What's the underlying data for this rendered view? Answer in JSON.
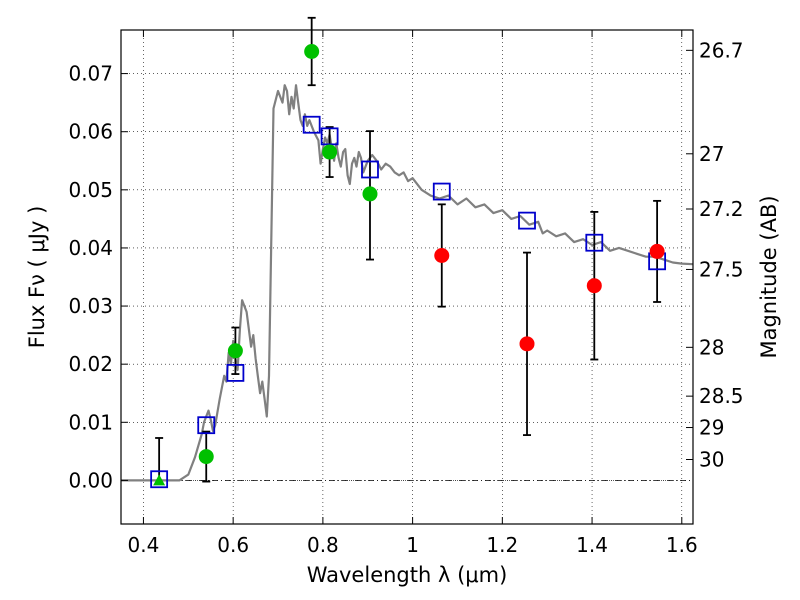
{
  "chart_data": {
    "type": "scatter",
    "title": "",
    "xlabel": "Wavelength  λ (μm)",
    "ylabel": "Flux  Fν  ( μJy )",
    "y2label": "Magnitude (AB)",
    "xlim": [
      0.35,
      1.625
    ],
    "ylim": [
      -0.0075,
      0.0775
    ],
    "grid": true,
    "x_ticks": [
      0.4,
      0.6,
      0.8,
      1.0,
      1.2,
      1.4,
      1.6
    ],
    "x_tick_labels": [
      "0.4",
      "0.6",
      "0.8",
      "1",
      "1.2",
      "1.4",
      "1.6"
    ],
    "y_ticks": [
      0.0,
      0.01,
      0.02,
      0.03,
      0.04,
      0.05,
      0.06,
      0.07
    ],
    "y_tick_labels": [
      "0.00",
      "0.01",
      "0.02",
      "0.03",
      "0.04",
      "0.05",
      "0.06",
      "0.07"
    ],
    "right_ticks": [
      {
        "label": "26.7",
        "flux": 0.074
      },
      {
        "label": "27",
        "flux": 0.0562
      },
      {
        "label": "27.2",
        "flux": 0.0467
      },
      {
        "label": "27.5",
        "flux": 0.0363
      },
      {
        "label": "28",
        "flux": 0.0229
      },
      {
        "label": "28.5",
        "flux": 0.0145
      },
      {
        "label": "29",
        "flux": 0.0091
      },
      {
        "label": "30",
        "flux": 0.0036
      }
    ],
    "colors": {
      "green": "#00c000",
      "red": "#ff0000",
      "model_box": "#0000cc",
      "sed_line": "#808080",
      "error_bar": "#000000"
    },
    "series": [
      {
        "name": "model_spectrum",
        "kind": "line",
        "x": [
          0.35,
          0.48,
          0.5,
          0.515,
          0.53,
          0.535,
          0.54,
          0.545,
          0.55,
          0.555,
          0.56,
          0.57,
          0.58,
          0.585,
          0.59,
          0.595,
          0.6,
          0.605,
          0.61,
          0.615,
          0.62,
          0.63,
          0.64,
          0.645,
          0.65,
          0.655,
          0.66,
          0.665,
          0.67,
          0.675,
          0.68,
          0.69,
          0.7,
          0.71,
          0.715,
          0.72,
          0.725,
          0.73,
          0.735,
          0.74,
          0.745,
          0.75,
          0.755,
          0.76,
          0.765,
          0.77,
          0.78,
          0.79,
          0.795,
          0.8,
          0.805,
          0.81,
          0.815,
          0.82,
          0.825,
          0.83,
          0.835,
          0.84,
          0.845,
          0.85,
          0.855,
          0.86,
          0.865,
          0.87,
          0.875,
          0.88,
          0.885,
          0.89,
          0.9,
          0.91,
          0.92,
          0.93,
          0.94,
          0.95,
          0.96,
          0.97,
          0.98,
          0.99,
          1.0,
          1.02,
          1.04,
          1.06,
          1.08,
          1.1,
          1.12,
          1.14,
          1.16,
          1.18,
          1.2,
          1.22,
          1.24,
          1.26,
          1.28,
          1.29,
          1.3,
          1.32,
          1.34,
          1.36,
          1.38,
          1.4,
          1.42,
          1.44,
          1.46,
          1.48,
          1.5,
          1.52,
          1.54,
          1.56,
          1.58,
          1.6,
          1.625
        ],
        "y": [
          0.0,
          0.0,
          0.001,
          0.004,
          0.008,
          0.01,
          0.011,
          0.012,
          0.0105,
          0.0085,
          0.0095,
          0.014,
          0.018,
          0.017,
          0.022,
          0.02,
          0.024,
          0.021,
          0.019,
          0.026,
          0.031,
          0.029,
          0.023,
          0.025,
          0.021,
          0.018,
          0.015,
          0.017,
          0.014,
          0.011,
          0.018,
          0.064,
          0.067,
          0.065,
          0.068,
          0.067,
          0.063,
          0.066,
          0.064,
          0.068,
          0.065,
          0.062,
          0.061,
          0.063,
          0.061,
          0.062,
          0.06,
          0.0585,
          0.0545,
          0.057,
          0.059,
          0.058,
          0.0595,
          0.057,
          0.055,
          0.058,
          0.0555,
          0.054,
          0.0565,
          0.057,
          0.0525,
          0.051,
          0.0545,
          0.0555,
          0.054,
          0.0565,
          0.0555,
          0.053,
          0.055,
          0.056,
          0.055,
          0.0535,
          0.0545,
          0.054,
          0.053,
          0.0525,
          0.053,
          0.0515,
          0.052,
          0.05,
          0.049,
          0.0485,
          0.049,
          0.0475,
          0.0485,
          0.047,
          0.0475,
          0.046,
          0.0465,
          0.045,
          0.0455,
          0.044,
          0.0445,
          0.0425,
          0.043,
          0.042,
          0.0425,
          0.041,
          0.0415,
          0.0405,
          0.041,
          0.0395,
          0.04,
          0.0395,
          0.039,
          0.0385,
          0.0385,
          0.038,
          0.0375,
          0.0373,
          0.0372
        ]
      },
      {
        "name": "model_bandpass",
        "kind": "open_square",
        "x": [
          0.435,
          0.54,
          0.605,
          0.775,
          0.815,
          0.905,
          1.065,
          1.255,
          1.405,
          1.545
        ],
        "y": [
          0.0002,
          0.0095,
          0.0185,
          0.0612,
          0.0592,
          0.0535,
          0.0497,
          0.0447,
          0.0409,
          0.0377
        ]
      },
      {
        "name": "detections_optical",
        "kind": "filled_circle",
        "color_key": "green",
        "x": [
          0.54,
          0.605,
          0.775,
          0.815,
          0.905
        ],
        "y": [
          0.0041,
          0.0223,
          0.0738,
          0.0565,
          0.0493
        ],
        "err_low": [
          0.0043,
          0.004,
          0.0058,
          0.0043,
          0.0113
        ],
        "err_high": [
          0.0043,
          0.004,
          0.0058,
          0.0043,
          0.0108
        ]
      },
      {
        "name": "detections_nir",
        "kind": "filled_circle",
        "color_key": "red",
        "x": [
          1.065,
          1.255,
          1.405,
          1.545
        ],
        "y": [
          0.0387,
          0.0235,
          0.0335,
          0.0394
        ],
        "err_low": [
          0.0088,
          0.0157,
          0.0127,
          0.0087
        ],
        "err_high": [
          0.0088,
          0.0157,
          0.0127,
          0.0087
        ]
      },
      {
        "name": "non_detection",
        "kind": "filled_triangle",
        "color_key": "green",
        "x": [
          0.435
        ],
        "y": [
          0.0
        ],
        "err_low": [
          0.0
        ],
        "err_high": [
          0.0073
        ]
      }
    ]
  }
}
